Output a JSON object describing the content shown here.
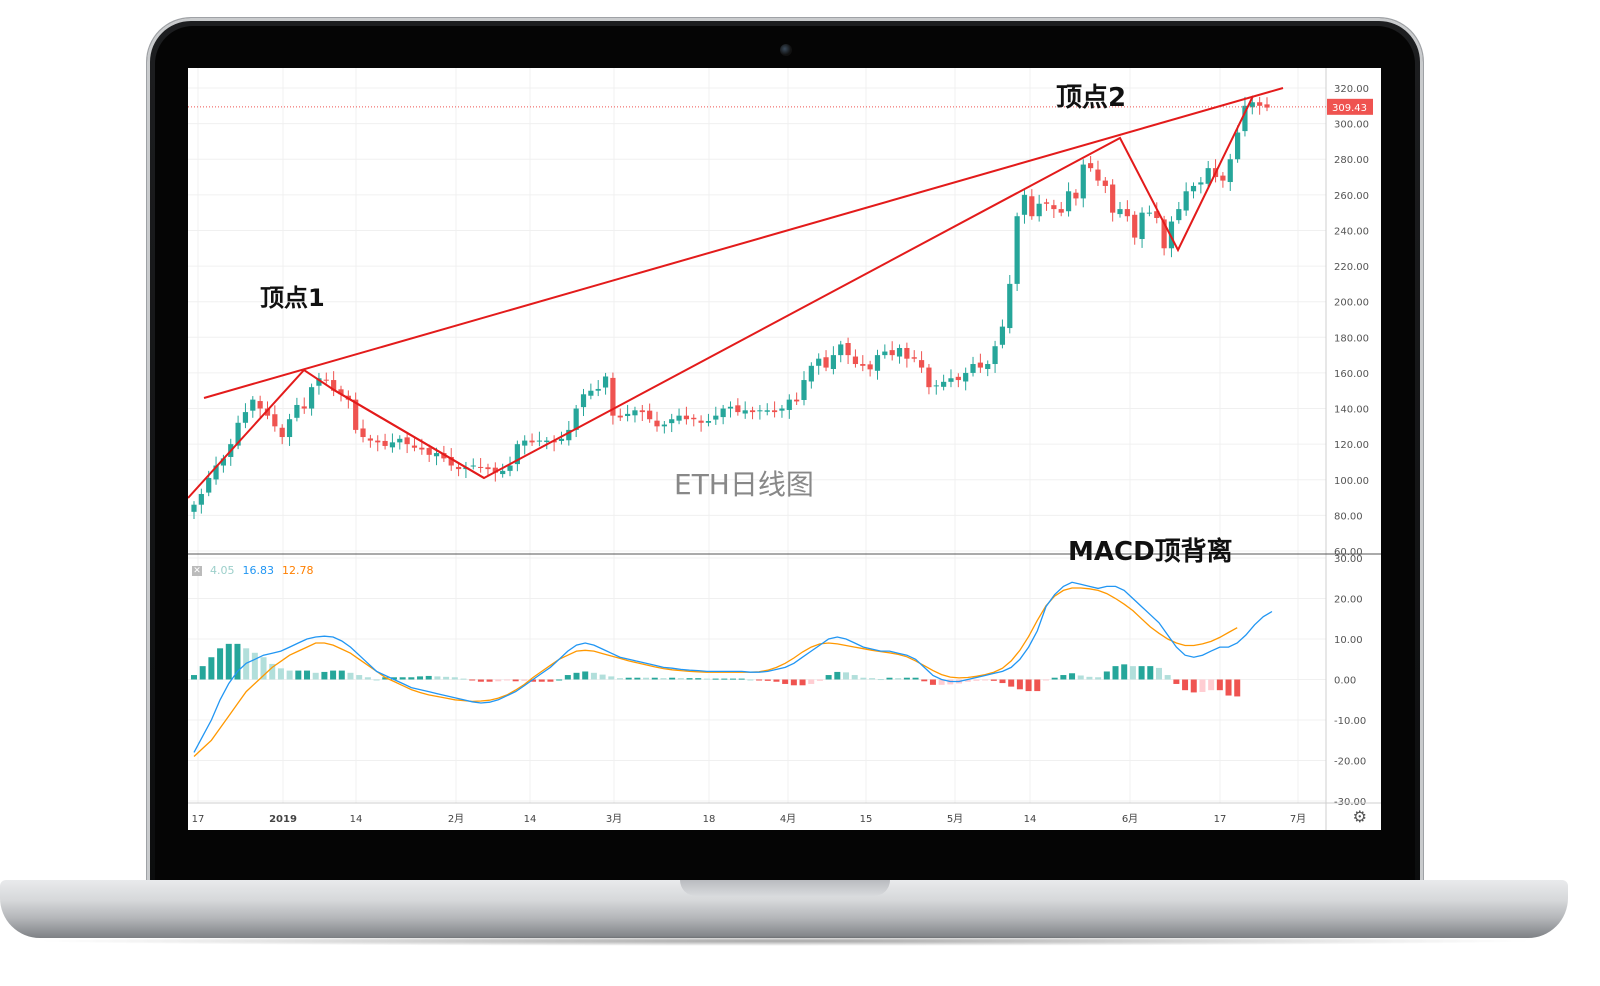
{
  "annotations": {
    "peak1": "顶点1",
    "peak2": "顶点2",
    "chart_title": "ETH日线图",
    "divergence": "MACD顶背离"
  },
  "current_price": "309.43",
  "macd_legend": {
    "v1": "4.05",
    "v2": "16.83",
    "v3": "12.78"
  },
  "colors": {
    "up": "#26a69a",
    "down": "#ef5350",
    "trendline": "#e31b1b",
    "macd_line": "#2196f3",
    "signal_line": "#ff9800",
    "hist_up_strong": "#26a69a",
    "hist_up_weak": "#b2dfdb",
    "hist_down_strong": "#ef5350",
    "hist_down_weak": "#ffcdd2"
  },
  "chart_data": [
    {
      "type": "candlestick",
      "title": "ETH日线图",
      "x_tick_labels": [
        "17",
        "2019",
        "14",
        "2月",
        "14",
        "3月",
        "18",
        "4月",
        "15",
        "5月",
        "14",
        "6月",
        "17",
        "7月"
      ],
      "y_tick_labels": [
        "320.00",
        "300.00",
        "280.00",
        "260.00",
        "240.00",
        "220.00",
        "200.00",
        "180.00",
        "160.00",
        "140.00",
        "120.00",
        "100.00",
        "80.00",
        "60.00"
      ],
      "ylim": [
        60,
        328
      ],
      "close": [
        86,
        92,
        101,
        108,
        112,
        120,
        132,
        138,
        145,
        140,
        136,
        130,
        124,
        134,
        142,
        140,
        152,
        157,
        156,
        150,
        148,
        145,
        128,
        124,
        122,
        121,
        119,
        121,
        123,
        120,
        118,
        117,
        114,
        115,
        112,
        108,
        106,
        107,
        108,
        107,
        106,
        104,
        105,
        108,
        120,
        122,
        121,
        122,
        122,
        121,
        123,
        128,
        140,
        148,
        150,
        151,
        158,
        136,
        135,
        137,
        139,
        138,
        134,
        130,
        131,
        134,
        136,
        134,
        134,
        132,
        133,
        136,
        140,
        141,
        138,
        139,
        138,
        139,
        139,
        138,
        140,
        145,
        144,
        156,
        164,
        168,
        163,
        170,
        176,
        170,
        165,
        164,
        162,
        170,
        172,
        170,
        174,
        168,
        168,
        163,
        152,
        153,
        155,
        157,
        156,
        160,
        165,
        163,
        165,
        175,
        186,
        210,
        248,
        260,
        248,
        255,
        255,
        252,
        250,
        262,
        258,
        277,
        275,
        268,
        265,
        250,
        252,
        248,
        236,
        250,
        250,
        247,
        230,
        245,
        252,
        262,
        265,
        267,
        275,
        270,
        268,
        280,
        295,
        310,
        312,
        310,
        309
      ],
      "current_price": 309.43,
      "trendlines_note": "upper line through peaks; zigzag through swing points"
    },
    {
      "type": "macd",
      "legend": [
        "4.05",
        "16.83",
        "12.78"
      ],
      "y_tick_labels": [
        "30.00",
        "20.00",
        "10.00",
        "0.00",
        "-10.00",
        "-20.00",
        "-30.00"
      ],
      "ylim": [
        -30,
        30
      ],
      "macd": [
        -18,
        -14,
        -10,
        -5,
        -1,
        2,
        4,
        5,
        6,
        6.5,
        7,
        8,
        9,
        10,
        10.5,
        10.7,
        10.5,
        9.5,
        8,
        6,
        4,
        2,
        1,
        0,
        -1,
        -2,
        -2.5,
        -3,
        -3.5,
        -4,
        -4.5,
        -5,
        -5.5,
        -5.8,
        -5.6,
        -5,
        -4,
        -3,
        -1.5,
        0,
        1.5,
        3,
        5,
        7,
        8.5,
        9,
        8.5,
        7.5,
        6.5,
        5.5,
        5,
        4.5,
        4,
        3.5,
        3,
        2.8,
        2.5,
        2.3,
        2.2,
        2,
        2,
        2,
        2,
        2,
        1.8,
        1.8,
        2,
        2.5,
        3,
        4,
        5.5,
        7,
        8.5,
        10,
        10.5,
        10,
        9,
        8,
        7.5,
        7,
        7,
        6.5,
        6,
        5,
        3,
        1,
        0,
        -0.5,
        -0.5,
        0,
        0.5,
        1,
        1.5,
        2,
        3,
        5,
        8,
        12,
        18,
        21,
        23,
        24,
        23.5,
        23,
        22.5,
        23,
        23,
        22,
        20,
        18,
        16,
        14,
        11,
        8,
        6,
        5.5,
        6,
        7,
        8,
        8,
        9,
        11,
        13.5,
        15.5,
        16.8
      ],
      "signal": [
        -19,
        -17,
        -15,
        -12,
        -9,
        -6,
        -3,
        -1,
        1,
        3,
        4.5,
        6,
        7,
        8,
        9,
        9,
        8.5,
        7.5,
        6.5,
        5,
        3.5,
        2,
        0.5,
        -0.5,
        -1.5,
        -2.5,
        -3.2,
        -3.8,
        -4.2,
        -4.6,
        -5,
        -5.2,
        -5.4,
        -5.3,
        -5.1,
        -4.6,
        -3.8,
        -2.6,
        -1.2,
        0.5,
        2,
        3.5,
        5,
        6,
        7,
        7.2,
        7,
        6.4,
        5.8,
        5.2,
        4.6,
        4.1,
        3.6,
        3.1,
        2.7,
        2.4,
        2.2,
        2,
        1.9,
        1.8,
        1.8,
        1.8,
        1.8,
        1.8,
        1.8,
        1.9,
        2.3,
        3,
        4,
        5.3,
        6.8,
        8,
        8.8,
        9,
        8.8,
        8.4,
        8,
        7.6,
        7.2,
        6.9,
        6.6,
        6.2,
        5.6,
        4.6,
        3.4,
        2.2,
        1.2,
        0.6,
        0.4,
        0.5,
        0.8,
        1.2,
        1.8,
        2.8,
        4.6,
        7.2,
        10.6,
        14.6,
        18.2,
        20.6,
        22,
        22.6,
        22.6,
        22.4,
        22,
        21.2,
        20,
        18.6,
        17,
        15,
        13,
        11.4,
        10,
        9,
        8.4,
        8.4,
        8.8,
        9.4,
        10.4,
        11.6,
        12.8
      ]
    }
  ]
}
